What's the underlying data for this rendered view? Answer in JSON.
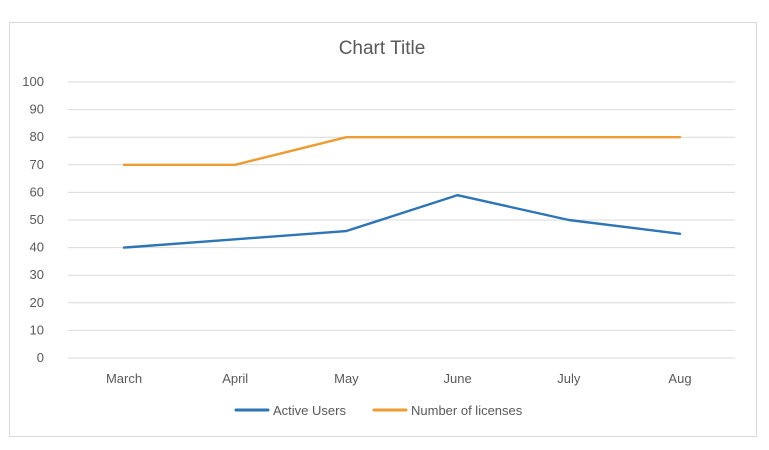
{
  "chart_data": {
    "type": "line",
    "title": "Chart Title",
    "xlabel": "",
    "ylabel": "",
    "categories": [
      "March",
      "April",
      "May",
      "June",
      "July",
      "Aug"
    ],
    "ylim": [
      0,
      100
    ],
    "yticks": [
      0,
      10,
      20,
      30,
      40,
      50,
      60,
      70,
      80,
      90,
      100
    ],
    "grid": true,
    "legend": "bottom",
    "series": [
      {
        "name": "Active Users",
        "color": "#2e75b6",
        "values": [
          40,
          43,
          46,
          59,
          50,
          45
        ]
      },
      {
        "name": "Number of licenses",
        "color": "#ed9b33",
        "values": [
          70,
          70,
          80,
          80,
          80,
          80
        ]
      }
    ]
  }
}
